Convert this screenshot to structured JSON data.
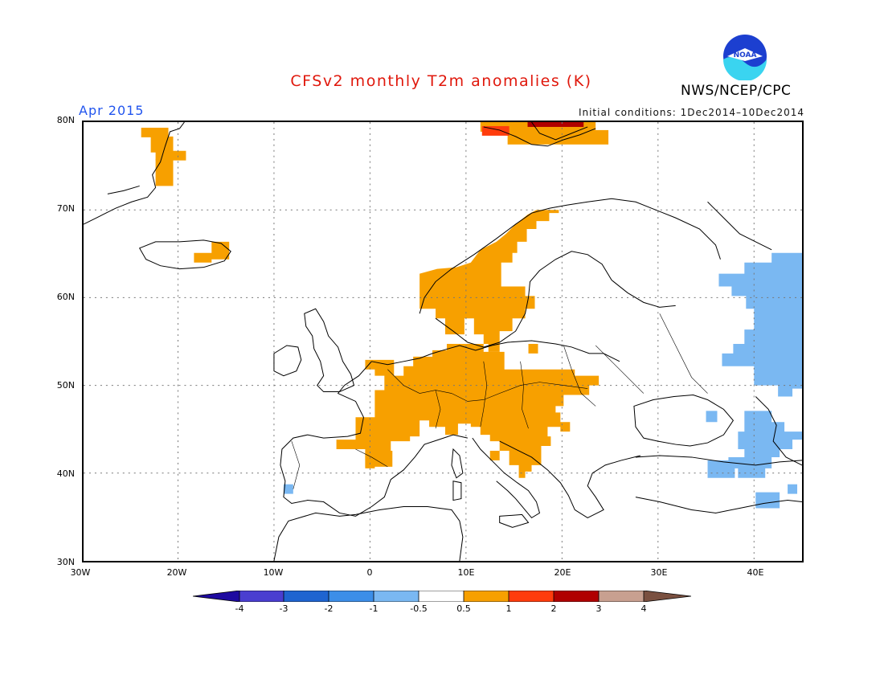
{
  "header": {
    "title": "CFSv2 monthly T2m anomalies (K)",
    "month": "Apr 2015",
    "initial_conditions": "Initial conditions: 1Dec2014–10Dec2014",
    "agency": "NWS/NCEP/CPC",
    "logo_text": "NOAA"
  },
  "map": {
    "lat_labels": [
      "80N",
      "70N",
      "60N",
      "50N",
      "40N",
      "30N"
    ],
    "lon_labels": [
      "30W",
      "20W",
      "10W",
      "0",
      "10E",
      "20E",
      "30E",
      "40E"
    ],
    "lat_range": [
      30,
      80
    ],
    "lon_range": [
      -30,
      45
    ],
    "grid": true
  },
  "colorbar": {
    "labels": [
      "-4",
      "-3",
      "-2",
      "-1",
      "-0.5",
      "0.5",
      "1",
      "2",
      "3",
      "4"
    ],
    "colors": [
      "#1e0aa0",
      "#4a3ed0",
      "#1f64d0",
      "#3c8ee8",
      "#7ab8f2",
      "#ffffff",
      "#f7a000",
      "#ff3c0c",
      "#b00000",
      "#c8a090",
      "#7a5040"
    ]
  },
  "anomaly_legend": {
    "warm_color": "#f7a000",
    "hot_color": "#ff3c0c",
    "cool_color": "#7ab8f2"
  }
}
